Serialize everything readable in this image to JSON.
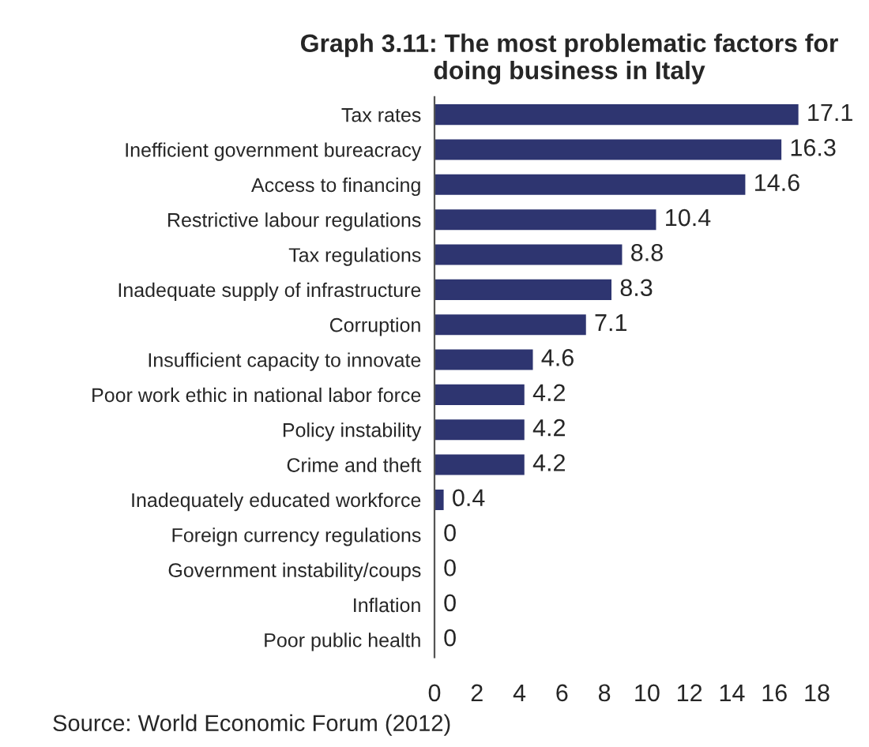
{
  "chart_data": {
    "type": "bar",
    "orientation": "horizontal",
    "title": "Graph 3.11: The most problematic factors for doing business in Italy",
    "categories": [
      "Tax rates",
      "Inefficient government bureacracy",
      "Access to financing",
      "Restrictive labour regulations",
      "Tax regulations",
      "Inadequate supply of infrastructure",
      "Corruption",
      "Insufficient capacity to innovate",
      "Poor work ethic in national labor force",
      "Policy instability",
      "Crime and theft",
      "Inadequately educated workforce",
      "Foreign currency regulations",
      "Government instability/coups",
      "Inflation",
      "Poor public health"
    ],
    "values": [
      17.1,
      16.3,
      14.6,
      10.4,
      8.8,
      8.3,
      7.1,
      4.6,
      4.2,
      4.2,
      4.2,
      0.4,
      0,
      0,
      0,
      0
    ],
    "color": "#2e3570",
    "xlim": [
      0,
      18
    ],
    "xticks": [
      0,
      2,
      4,
      6,
      8,
      10,
      12,
      14,
      16,
      18
    ],
    "data_labels": true,
    "grid": false,
    "legend": false,
    "annotations": [
      "Source: World Economic Forum (2012)"
    ]
  }
}
